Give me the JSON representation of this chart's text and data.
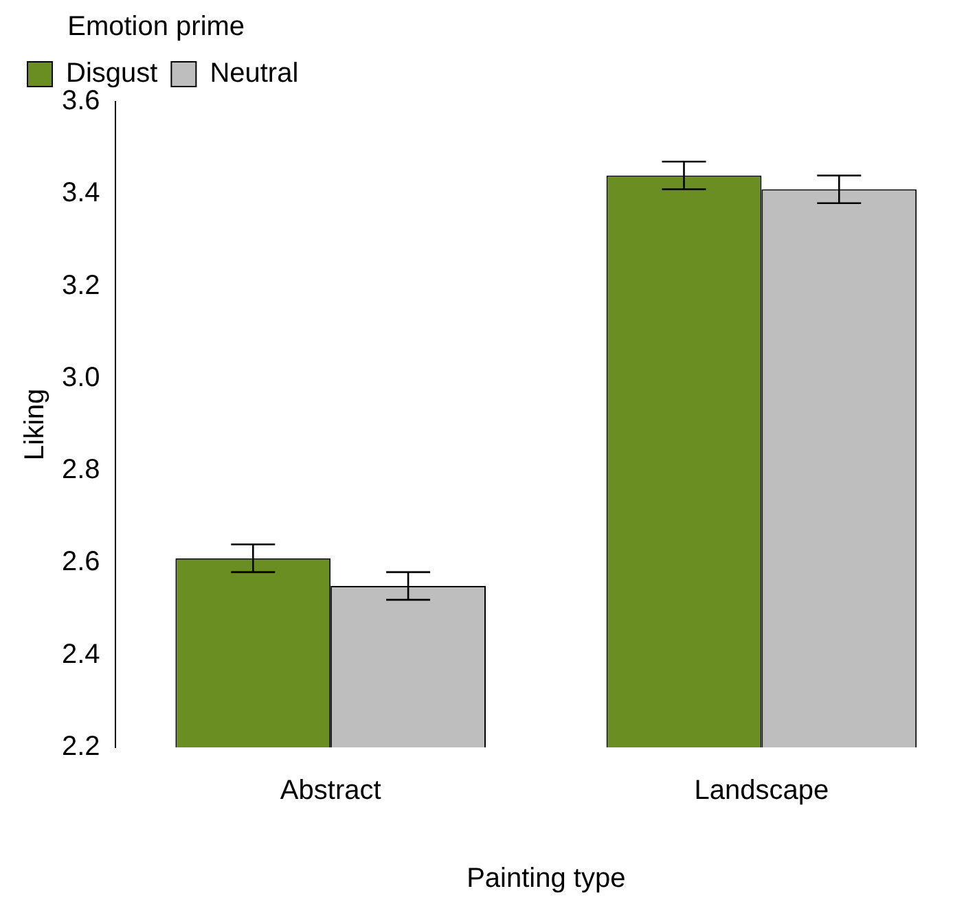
{
  "chart_data": {
    "type": "bar",
    "xlabel": "Painting type",
    "ylabel": "Liking",
    "legend_title": "Emotion prime",
    "categories": [
      "Abstract",
      "Landscape"
    ],
    "series": [
      {
        "name": "Disgust",
        "color": "#6b8e23",
        "values": [
          2.61,
          3.44
        ],
        "errors": [
          0.03,
          0.03
        ]
      },
      {
        "name": "Neutral",
        "color": "#bebebe",
        "values": [
          2.55,
          3.41
        ],
        "errors": [
          0.03,
          0.03
        ]
      }
    ],
    "ylim": [
      2.2,
      3.6
    ],
    "yticks": [
      2.2,
      2.4,
      2.6,
      2.8,
      {
        "value": 3,
        "label": "3.0"
      },
      3.2,
      3.4,
      3.6
    ],
    "grid": false,
    "legend": "top left"
  }
}
